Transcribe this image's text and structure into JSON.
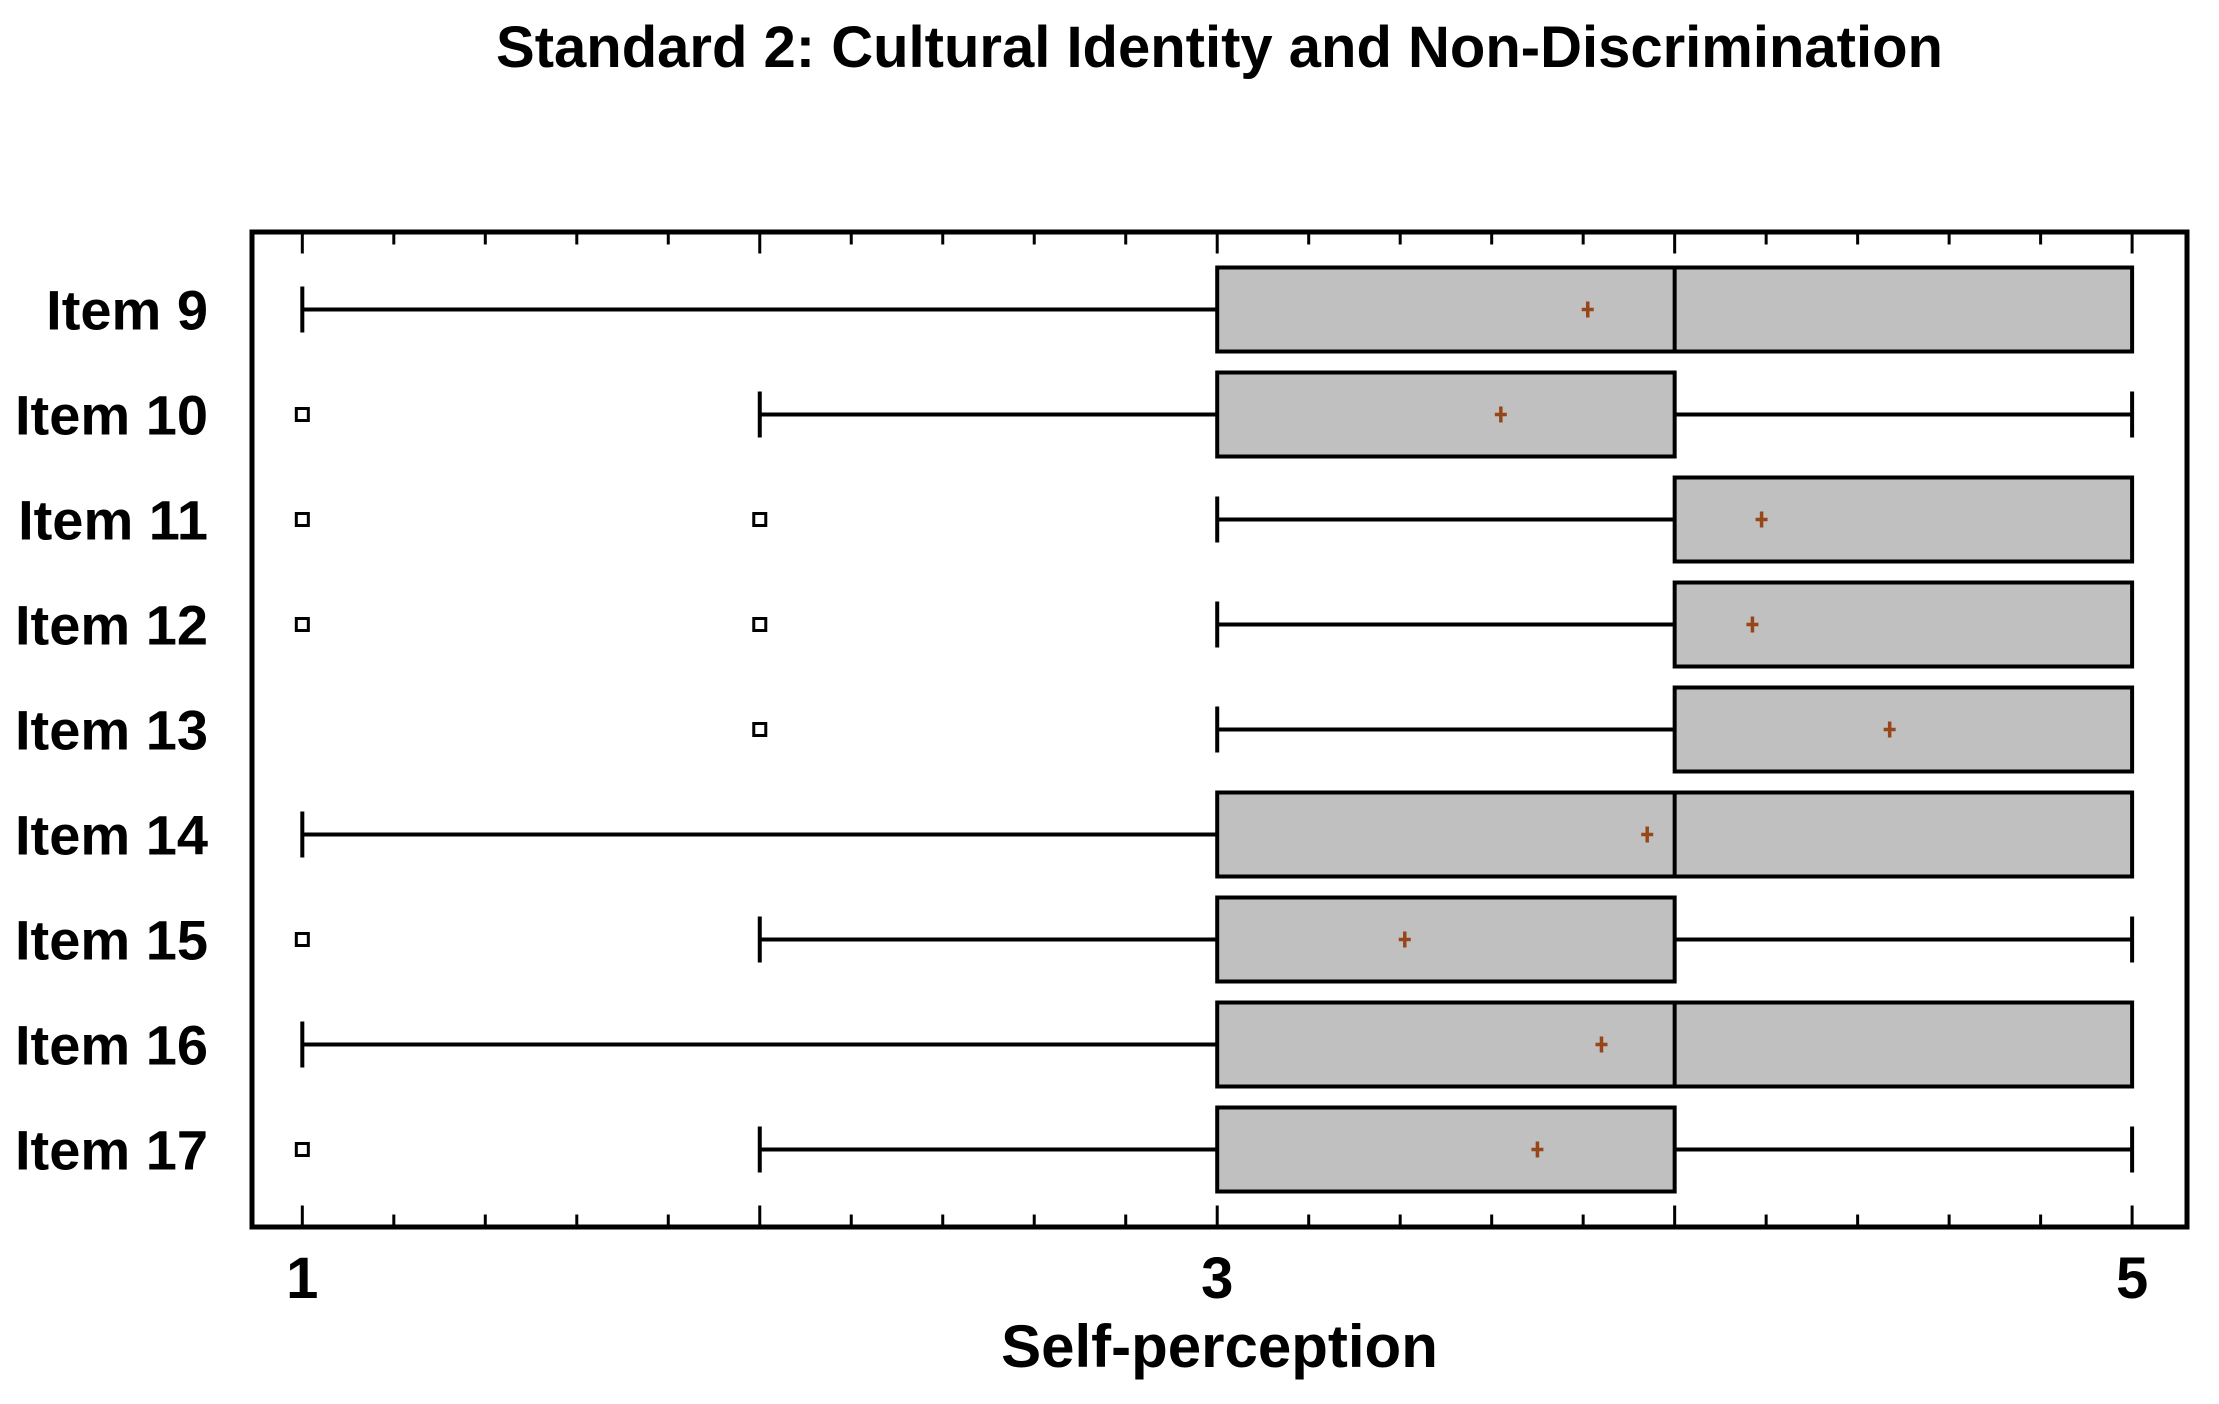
{
  "figure": {
    "title": "Standard 2: Cultural Identity and Non-Discrimination",
    "x_axis_title": "Self-perception"
  },
  "chart_data": {
    "type": "boxplot",
    "orientation": "horizontal",
    "title": "Standard 2: Cultural Identity and Non-Discrimination",
    "xlabel": "Self-perception",
    "ylabel": "",
    "xlim": [
      0.89,
      5.12
    ],
    "x_major_ticks": [
      1,
      2,
      3,
      4,
      5
    ],
    "x_labeled_ticks": [
      1,
      3,
      5
    ],
    "x_minor_tick_step": 0.2,
    "grid": false,
    "legend": false,
    "categories": [
      "Item 9",
      "Item 10",
      "Item 11",
      "Item 12",
      "Item 13",
      "Item 14",
      "Item 15",
      "Item 16",
      "Item 17"
    ],
    "series": [
      {
        "category": "Item 9",
        "whisker_low": 1,
        "q1": 3,
        "median": 4,
        "q3": 5,
        "whisker_high": 5,
        "mean": 3.81,
        "outliers": []
      },
      {
        "category": "Item 10",
        "whisker_low": 2,
        "q1": 3,
        "median": null,
        "q3": 4,
        "whisker_high": 5,
        "mean": 3.62,
        "outliers": [
          1
        ]
      },
      {
        "category": "Item 11",
        "whisker_low": 3,
        "q1": 4,
        "median": null,
        "q3": 5,
        "whisker_high": 5,
        "mean": 4.19,
        "outliers": [
          1,
          2
        ]
      },
      {
        "category": "Item 12",
        "whisker_low": 3,
        "q1": 4,
        "median": null,
        "q3": 5,
        "whisker_high": 5,
        "mean": 4.17,
        "outliers": [
          1,
          2
        ]
      },
      {
        "category": "Item 13",
        "whisker_low": 3,
        "q1": 4,
        "median": null,
        "q3": 5,
        "whisker_high": 5,
        "mean": 4.47,
        "outliers": [
          2
        ]
      },
      {
        "category": "Item 14",
        "whisker_low": 1,
        "q1": 3,
        "median": 4,
        "q3": 5,
        "whisker_high": 5,
        "mean": 3.94,
        "outliers": []
      },
      {
        "category": "Item 15",
        "whisker_low": 2,
        "q1": 3,
        "median": null,
        "q3": 4,
        "whisker_high": 5,
        "mean": 3.41,
        "outliers": [
          1
        ]
      },
      {
        "category": "Item 16",
        "whisker_low": 1,
        "q1": 3,
        "median": 4,
        "q3": 5,
        "whisker_high": 5,
        "mean": 3.84,
        "outliers": []
      },
      {
        "category": "Item 17",
        "whisker_low": 2,
        "q1": 3,
        "median": null,
        "q3": 4,
        "whisker_high": 5,
        "mean": 3.7,
        "outliers": [
          1
        ]
      }
    ],
    "style": {
      "box_fill": "#C0C0C0",
      "line_color": "#000000",
      "mean_marker_color": "#964619",
      "mean_marker": "plus",
      "outlier_marker": "open-square",
      "background": "#FFFFFF"
    }
  }
}
